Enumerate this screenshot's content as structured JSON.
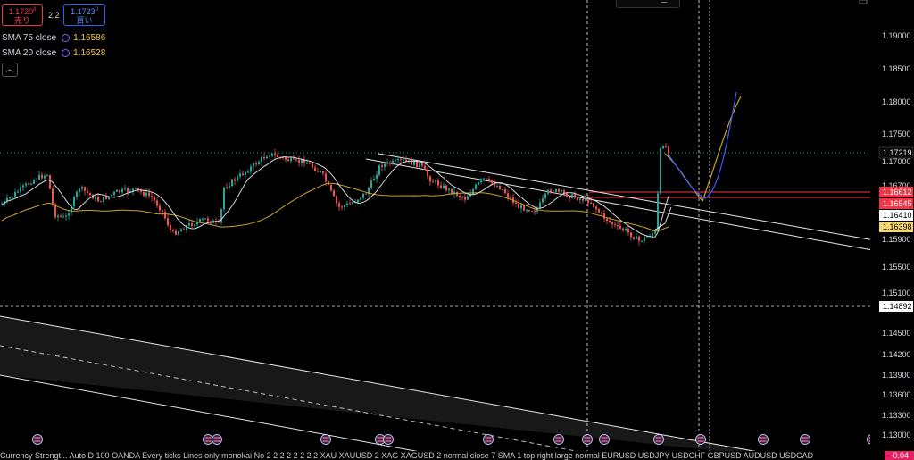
{
  "trade": {
    "sell_price": "1.1720",
    "sell_sup": "8",
    "sell_label": "売り",
    "spread": "2.2",
    "buy_price": "1.1723",
    "buy_sup": "0",
    "buy_label": "買い"
  },
  "legend": [
    {
      "label": "SMA 75 close",
      "value": "1.16586"
    },
    {
      "label": "SMA 20 close",
      "value": "1.16528"
    }
  ],
  "price_axis": {
    "labels": [
      "1.19000",
      "1.18500",
      "1.18000",
      "1.17500",
      "1.17000",
      "1.16700",
      "1.15900",
      "1.15500",
      "1.15100",
      "1.14500",
      "1.14200",
      "1.13900",
      "1.13600",
      "1.13300",
      "1.13000"
    ]
  },
  "price_badges": [
    {
      "label": "1.17219",
      "bg": "#0a0a0a",
      "fg": "#e8e8e8"
    },
    {
      "label": "1.16612",
      "bg": "#f23645",
      "fg": "#ffffff"
    },
    {
      "label": "1.16545",
      "bg": "#f23645",
      "fg": "#ffffff"
    },
    {
      "label": "1.16410",
      "bg": "#ffffff",
      "fg": "#000000"
    },
    {
      "label": "1.16398",
      "bg": "#f7d774",
      "fg": "#000000"
    },
    {
      "label": "1.14892",
      "bg": "#ffffff",
      "fg": "#000000"
    }
  ],
  "ticker": {
    "text": "Currency Strengt... Auto D 100 OANDA Every ticks Lines only monokai No 2 2 2 2 2 2 2 2 XAU XAUUSD 2 XAG XAGUSD 2 normal close 7 SMA 1 top right large normal EURUSD USDJPY USDCHF GBPUSD AUDUSD USDCAD",
    "value": "-0.04"
  },
  "colors": {
    "up": "#26a69a",
    "down": "#ef5350",
    "sma75": "#c9a227",
    "sma20": "#d8d8d8",
    "accent_red": "#f23645"
  }
}
